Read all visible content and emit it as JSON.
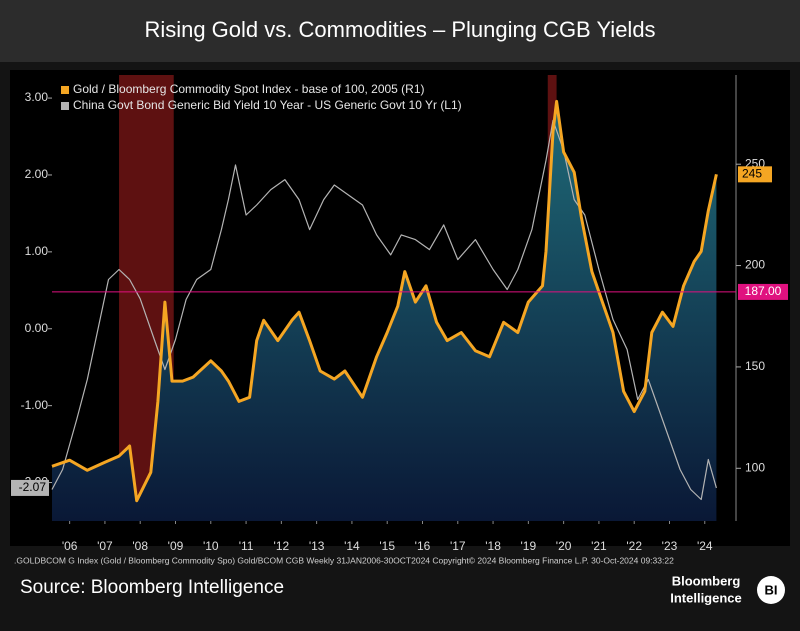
{
  "chart_data": {
    "type": "dual-line",
    "title": "Rising Gold vs. Commodities – Plunging CGB Yields",
    "xlim": [
      2006,
      2025.3
    ],
    "xticks": [
      {
        "value": 2006.5,
        "label": "'06"
      },
      {
        "value": 2007.5,
        "label": "'07"
      },
      {
        "value": 2008.5,
        "label": "'08"
      },
      {
        "value": 2009.5,
        "label": "'09"
      },
      {
        "value": 2010.5,
        "label": "'10"
      },
      {
        "value": 2011.5,
        "label": "'11"
      },
      {
        "value": 2012.5,
        "label": "'12"
      },
      {
        "value": 2013.5,
        "label": "'13"
      },
      {
        "value": 2014.5,
        "label": "'14"
      },
      {
        "value": 2015.5,
        "label": "'15"
      },
      {
        "value": 2016.5,
        "label": "'16"
      },
      {
        "value": 2017.5,
        "label": "'17"
      },
      {
        "value": 2018.5,
        "label": "'18"
      },
      {
        "value": 2019.5,
        "label": "'19"
      },
      {
        "value": 2020.5,
        "label": "'20"
      },
      {
        "value": 2021.5,
        "label": "'21"
      },
      {
        "value": 2022.5,
        "label": "'22"
      },
      {
        "value": 2023.5,
        "label": "'23"
      },
      {
        "value": 2024.5,
        "label": "'24"
      }
    ],
    "ylim": [
      -2.5,
      3.3
    ],
    "yticks": [
      {
        "value": -2,
        "label": "-2.00"
      },
      {
        "value": -1,
        "label": "-1.00"
      },
      {
        "value": 0,
        "label": "0.00"
      },
      {
        "value": 1,
        "label": "1.00"
      },
      {
        "value": 2,
        "label": "2.00"
      },
      {
        "value": 3,
        "label": "3.00"
      }
    ],
    "y2lim": [
      74,
      294
    ],
    "y2ticks": [
      100,
      150,
      200,
      250
    ],
    "shaded_regions": [
      {
        "start": 2007.9,
        "end": 2009.45
      },
      {
        "start": 2020.05,
        "end": 2020.3
      }
    ],
    "hline": {
      "value": 187,
      "label": "187.00",
      "axis": "y2",
      "color": "#e0117f"
    },
    "series": [
      {
        "name": "Gold / Bloomberg Commodity Spot Index - base of 100, 2005 (R1)",
        "color": "#f5a623",
        "axis": "y2",
        "area": true,
        "x": [
          2006.0,
          2006.5,
          2007.0,
          2007.5,
          2007.9,
          2008.2,
          2008.4,
          2008.8,
          2009.0,
          2009.2,
          2009.4,
          2009.7,
          2010.0,
          2010.5,
          2010.8,
          2011.0,
          2011.3,
          2011.6,
          2011.8,
          2012.0,
          2012.4,
          2012.8,
          2013.0,
          2013.3,
          2013.6,
          2014.0,
          2014.3,
          2014.8,
          2015.2,
          2015.5,
          2015.8,
          2016.0,
          2016.3,
          2016.6,
          2016.9,
          2017.2,
          2017.6,
          2018.0,
          2018.4,
          2018.8,
          2019.2,
          2019.5,
          2019.9,
          2020.0,
          2020.2,
          2020.3,
          2020.5,
          2020.8,
          2021.0,
          2021.3,
          2021.6,
          2021.9,
          2022.2,
          2022.5,
          2022.8,
          2023.0,
          2023.3,
          2023.6,
          2023.9,
          2024.2,
          2024.4,
          2024.6,
          2024.83
        ],
        "values": [
          101,
          104,
          99,
          103,
          106,
          111,
          84,
          98,
          133,
          182,
          143,
          143,
          145,
          153,
          148,
          143,
          133,
          135,
          163,
          173,
          163,
          173,
          177,
          163,
          148,
          144,
          148,
          135,
          155,
          167,
          180,
          197,
          182,
          190,
          172,
          163,
          167,
          158,
          155,
          172,
          167,
          182,
          190,
          207,
          266,
          281,
          256,
          246,
          224,
          197,
          182,
          167,
          138,
          128,
          138,
          167,
          177,
          170,
          190,
          202,
          207,
          227,
          245
        ],
        "last_value_label": "245"
      },
      {
        "name": "China Govt Bond Generic Bid Yield 10 Year - US Generic Govt 10 Yr (L1)",
        "color": "#b4b4b4",
        "axis": "y",
        "x": [
          2006.0,
          2006.3,
          2006.7,
          2007.0,
          2007.3,
          2007.6,
          2007.9,
          2008.2,
          2008.5,
          2008.9,
          2009.2,
          2009.5,
          2009.8,
          2010.1,
          2010.5,
          2010.8,
          2011.0,
          2011.2,
          2011.5,
          2011.8,
          2012.2,
          2012.6,
          2013.0,
          2013.3,
          2013.7,
          2014.0,
          2014.4,
          2014.8,
          2015.2,
          2015.6,
          2015.9,
          2016.3,
          2016.7,
          2017.1,
          2017.5,
          2018.0,
          2018.5,
          2018.9,
          2019.2,
          2019.6,
          2020.0,
          2020.2,
          2020.5,
          2020.8,
          2021.1,
          2021.5,
          2021.9,
          2022.3,
          2022.6,
          2022.9,
          2023.2,
          2023.5,
          2023.8,
          2024.1,
          2024.4,
          2024.6,
          2024.83
        ],
        "values": [
          -2.09,
          -1.83,
          -1.18,
          -0.66,
          -0.01,
          0.64,
          0.77,
          0.64,
          0.39,
          -0.14,
          -0.53,
          -0.14,
          0.38,
          0.64,
          0.77,
          1.29,
          1.68,
          2.13,
          1.48,
          1.61,
          1.81,
          1.94,
          1.68,
          1.29,
          1.68,
          1.87,
          1.74,
          1.61,
          1.22,
          0.96,
          1.22,
          1.16,
          1.03,
          1.35,
          0.9,
          1.16,
          0.77,
          0.51,
          0.77,
          1.29,
          2.19,
          2.71,
          2.32,
          1.68,
          1.48,
          0.77,
          0.12,
          -0.27,
          -0.92,
          -0.66,
          -1.05,
          -1.44,
          -1.83,
          -2.09,
          -2.22,
          -1.7,
          -2.07
        ],
        "last_value_label": "-2.07"
      }
    ],
    "footer": ".GOLDBCOM G Index (Gold / Bloomberg Commodity Spo) Gold/BCOM CGB  Weekly 31JAN2006-30OCT2024  Copyright© 2024 Bloomberg Finance L.P.  30-Oct-2024 09:33:22",
    "source": "Source: Bloomberg Intelligence",
    "logo": {
      "line1": "Bloomberg",
      "line2": "Intelligence",
      "badge": "BI"
    }
  }
}
